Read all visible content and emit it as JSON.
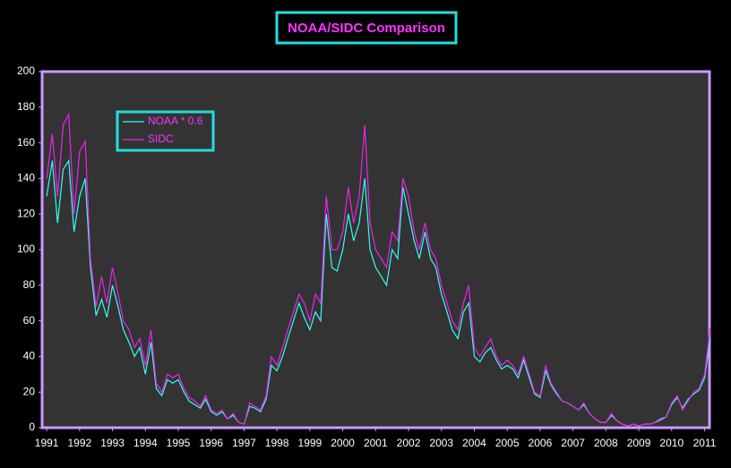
{
  "chart_data": {
    "type": "line",
    "title": "NOAA/SIDC Comparison",
    "legend": "upper left",
    "grid": false,
    "xlim": [
      1990.86,
      2011.15
    ],
    "ylim": [
      0,
      200
    ],
    "xticks": [
      1991,
      1992,
      1993,
      1994,
      1995,
      1996,
      1997,
      1998,
      1999,
      2000,
      2001,
      2002,
      2003,
      2004,
      2005,
      2006,
      2007,
      2008,
      2009,
      2010,
      2011
    ],
    "yticks": [
      0,
      20,
      40,
      60,
      80,
      100,
      120,
      140,
      160,
      180,
      200
    ],
    "x": [
      1991,
      1991.17,
      1991.33,
      1991.5,
      1991.67,
      1991.83,
      1992,
      1992.17,
      1992.33,
      1992.5,
      1992.67,
      1992.83,
      1993,
      1993.17,
      1993.33,
      1993.5,
      1993.67,
      1993.83,
      1994,
      1994.17,
      1994.33,
      1994.5,
      1994.67,
      1994.83,
      1995,
      1995.17,
      1995.33,
      1995.5,
      1995.67,
      1995.83,
      1996,
      1996.17,
      1996.33,
      1996.5,
      1996.67,
      1996.83,
      1997,
      1997.17,
      1997.33,
      1997.5,
      1997.67,
      1997.83,
      1998,
      1998.17,
      1998.33,
      1998.5,
      1998.67,
      1998.83,
      1999,
      1999.17,
      1999.33,
      1999.5,
      1999.67,
      1999.83,
      2000,
      2000.17,
      2000.33,
      2000.5,
      2000.67,
      2000.83,
      2001,
      2001.17,
      2001.33,
      2001.5,
      2001.67,
      2001.83,
      2002,
      2002.17,
      2002.33,
      2002.5,
      2002.67,
      2002.83,
      2003,
      2003.17,
      2003.33,
      2003.5,
      2003.67,
      2003.83,
      2004,
      2004.17,
      2004.33,
      2004.5,
      2004.67,
      2004.83,
      2005,
      2005.17,
      2005.33,
      2005.5,
      2005.67,
      2005.83,
      2006,
      2006.17,
      2006.33,
      2006.5,
      2006.67,
      2006.83,
      2007,
      2007.17,
      2007.33,
      2007.5,
      2007.67,
      2007.83,
      2008,
      2008.17,
      2008.33,
      2008.5,
      2008.67,
      2008.83,
      2009,
      2009.17,
      2009.33,
      2009.5,
      2009.67,
      2009.83,
      2010,
      2010.17,
      2010.33,
      2010.5,
      2010.67,
      2010.83,
      2011,
      2011.17
    ],
    "series": [
      {
        "name": "NOAA * 0.6",
        "color": "#33ffee",
        "values": [
          130,
          150,
          115,
          145,
          150,
          110,
          130,
          140,
          90,
          63,
          72,
          62,
          80,
          68,
          55,
          48,
          40,
          45,
          30,
          48,
          22,
          18,
          27,
          25,
          27,
          20,
          15,
          13,
          11,
          16,
          9,
          7,
          9,
          5,
          7,
          3,
          2,
          12,
          11,
          9,
          16,
          35,
          32,
          40,
          50,
          60,
          70,
          62,
          55,
          65,
          60,
          120,
          90,
          88,
          100,
          120,
          105,
          115,
          140,
          100,
          90,
          85,
          80,
          100,
          95,
          135,
          120,
          105,
          95,
          110,
          95,
          90,
          75,
          65,
          55,
          50,
          65,
          70,
          40,
          37,
          42,
          45,
          38,
          33,
          35,
          33,
          28,
          38,
          28,
          19,
          17,
          32,
          24,
          19,
          15,
          14,
          12,
          10,
          13,
          8,
          5,
          3,
          3,
          7,
          4,
          2,
          1,
          2,
          1,
          2,
          2,
          3,
          5,
          6,
          13,
          17,
          11,
          16,
          19,
          21,
          28,
          50
        ]
      },
      {
        "name": "SIDC",
        "color": "#ee22ee",
        "values": [
          140,
          165,
          130,
          170,
          176,
          120,
          155,
          161,
          95,
          68,
          85,
          70,
          90,
          75,
          60,
          55,
          45,
          50,
          35,
          55,
          25,
          20,
          30,
          28,
          30,
          22,
          17,
          15,
          12,
          18,
          10,
          8,
          10,
          5,
          8,
          3,
          2,
          14,
          12,
          10,
          18,
          40,
          35,
          45,
          55,
          65,
          75,
          70,
          60,
          75,
          70,
          130,
          100,
          100,
          110,
          135,
          115,
          130,
          170,
          115,
          100,
          95,
          90,
          110,
          105,
          140,
          130,
          110,
          100,
          115,
          100,
          95,
          80,
          70,
          60,
          55,
          70,
          80,
          45,
          40,
          45,
          50,
          40,
          35,
          38,
          35,
          30,
          40,
          30,
          20,
          18,
          35,
          25,
          20,
          15,
          14,
          12,
          10,
          14,
          8,
          5,
          3,
          3,
          8,
          4,
          2,
          1,
          2,
          1,
          2,
          2,
          3,
          4,
          6,
          14,
          18,
          10,
          15,
          20,
          22,
          30,
          56
        ]
      }
    ]
  }
}
